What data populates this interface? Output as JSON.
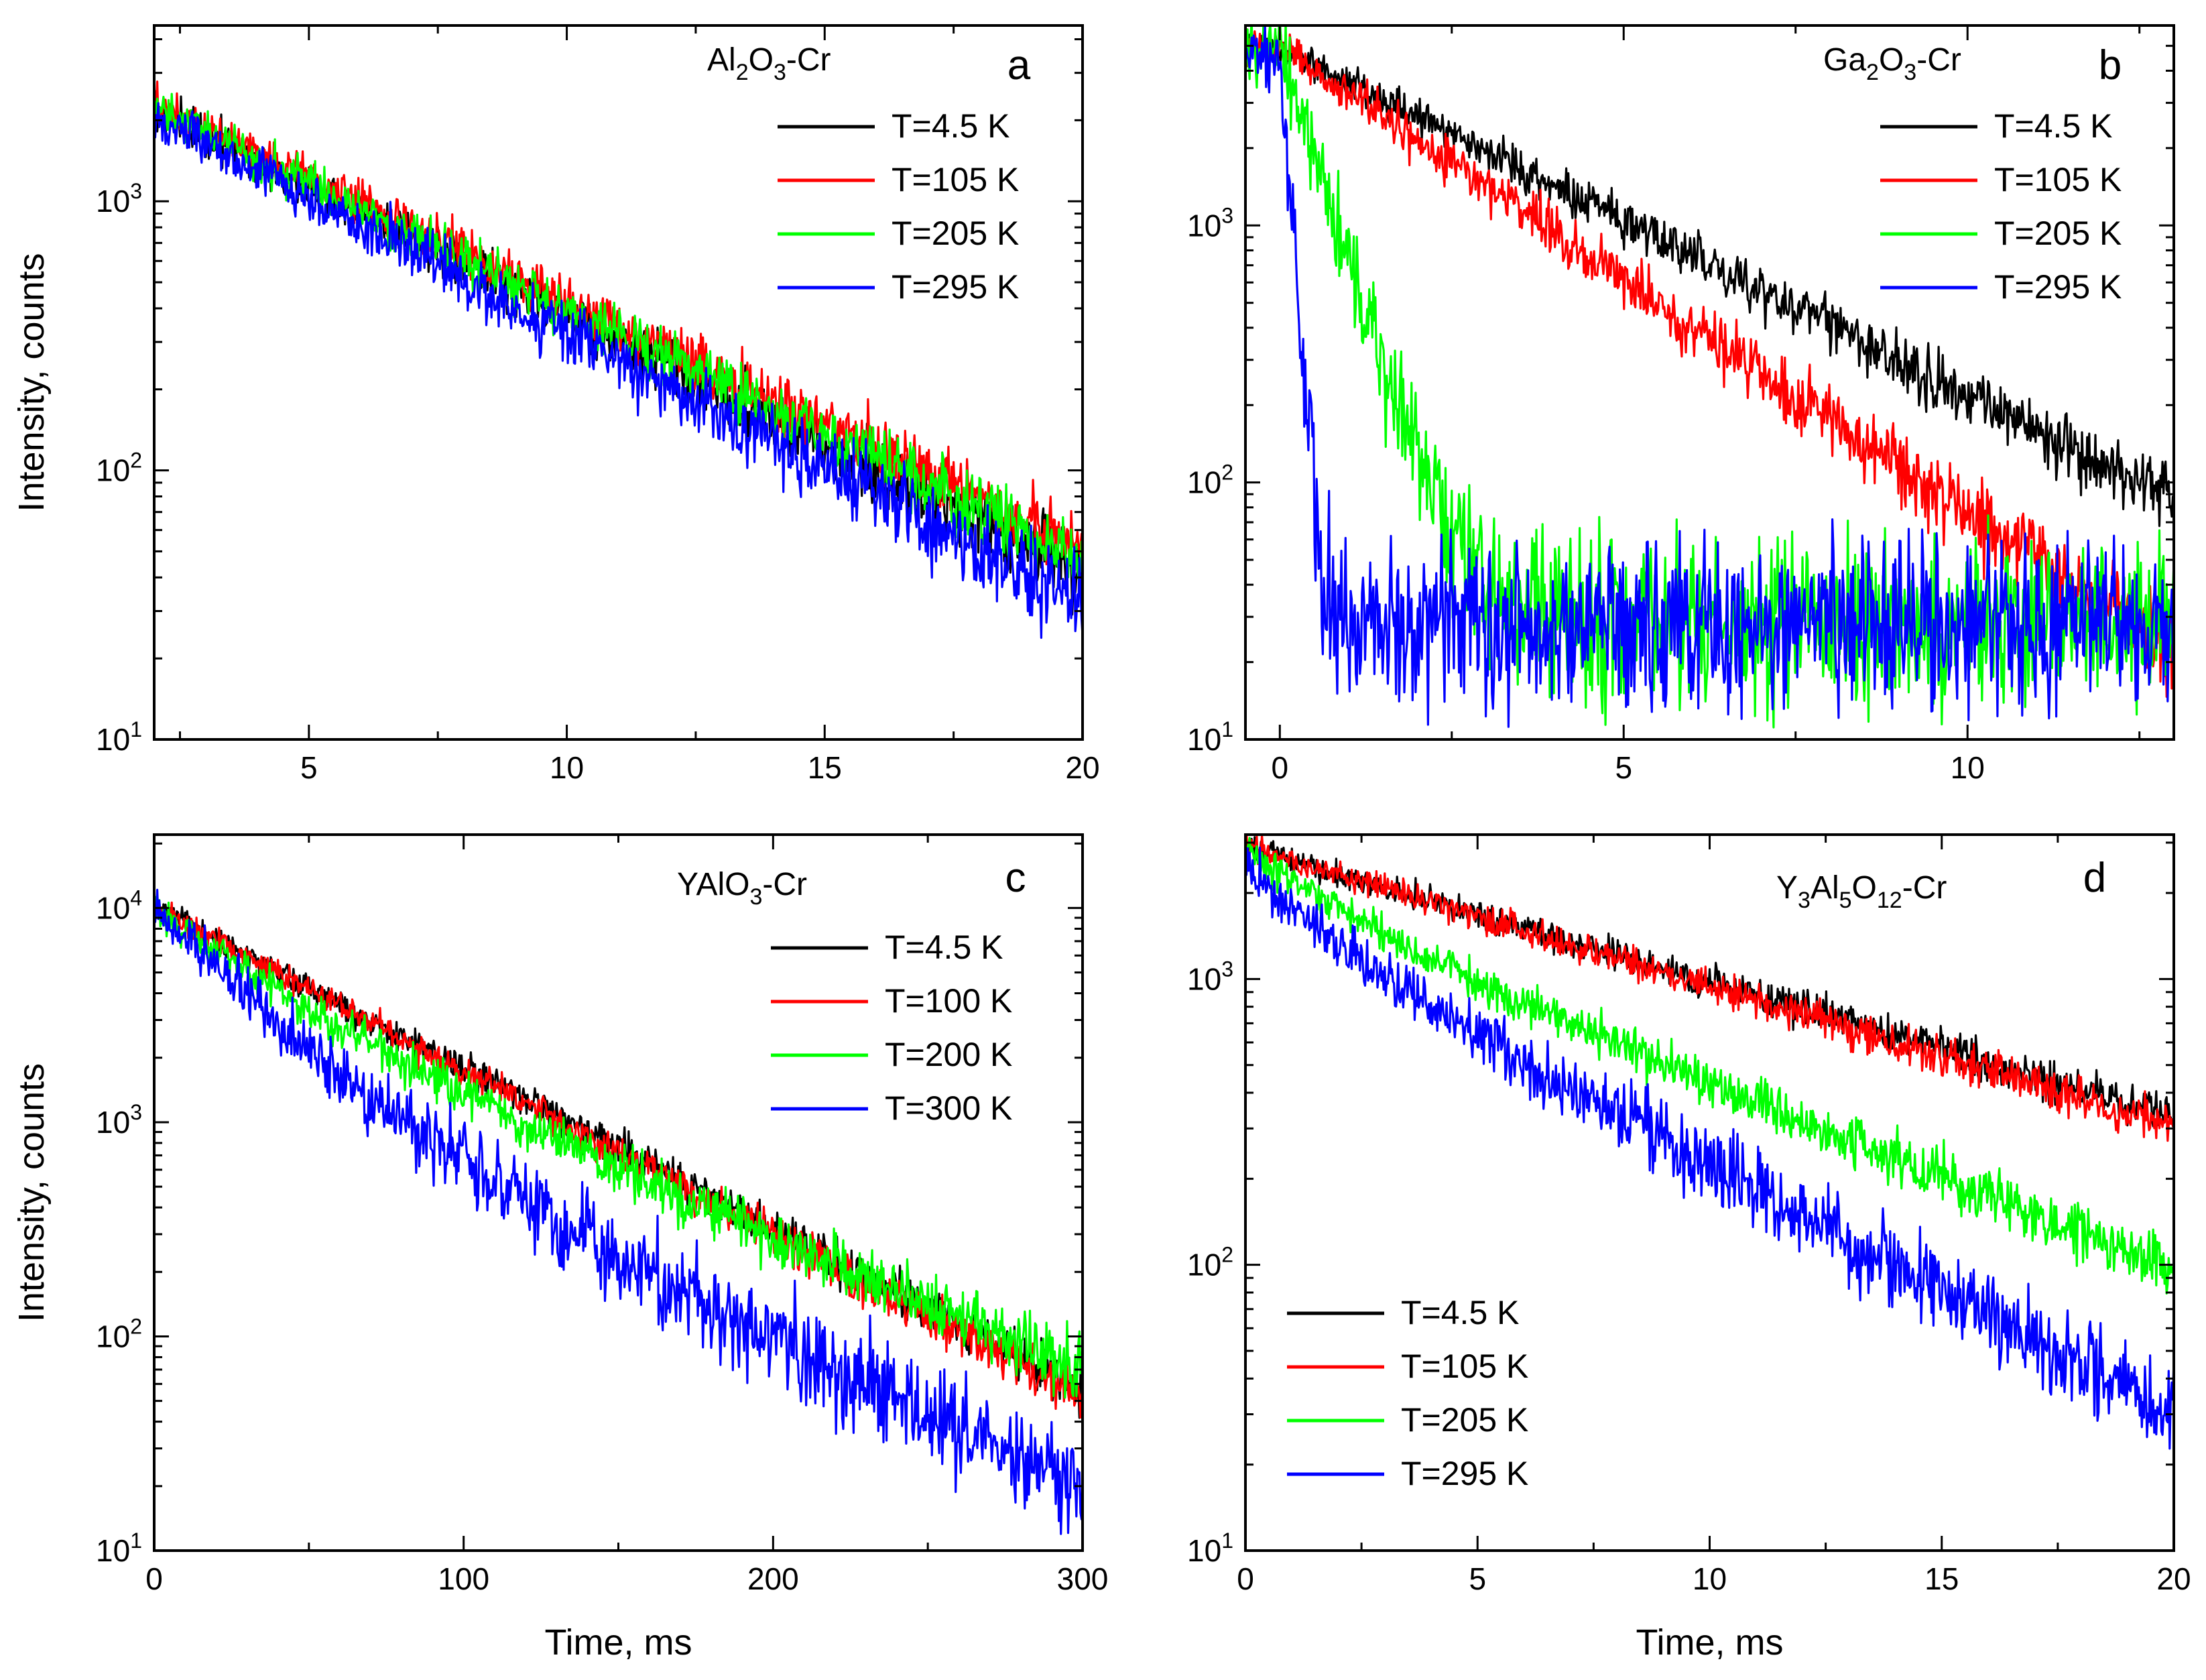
{
  "chart_data": [
    {
      "type": "line",
      "panel": "a",
      "sample_main": "Al",
      "sample_parts": [
        {
          "t": "Al",
          "sub": false
        },
        {
          "t": "2",
          "sub": true
        },
        {
          "t": "O",
          "sub": false
        },
        {
          "t": "3",
          "sub": true
        },
        {
          "t": "-Cr",
          "sub": false
        }
      ],
      "xlabel": "",
      "ylabel": "Intensity, counts",
      "x_scale": "linear",
      "y_scale": "log",
      "xlim": [
        2,
        20
      ],
      "ylim": [
        10,
        4500
      ],
      "xticks": [
        5,
        10,
        15,
        20
      ],
      "xtick_labels": [
        "5",
        "10",
        "15",
        "20"
      ],
      "ymajor_ticks": [
        10,
        100,
        1000
      ],
      "ytick_labels": [
        {
          "base": "10",
          "exp": "1"
        },
        {
          "base": "10",
          "exp": "2"
        },
        {
          "base": "10",
          "exp": "3"
        }
      ],
      "legend_position": "top-right",
      "series": [
        {
          "name": "T=4.5 K",
          "color": "#000000",
          "y0": 3400,
          "decay": [
            {
              "amp": 1.0,
              "tau": 4.55
            }
          ],
          "bg": 0,
          "noise": 0.07
        },
        {
          "name": "T=105 K",
          "color": "#ff0000",
          "y0": 3500,
          "decay": [
            {
              "amp": 1.0,
              "tau": 4.75
            }
          ],
          "bg": 0,
          "noise": 0.07
        },
        {
          "name": "T=205 K",
          "color": "#00ff00",
          "y0": 3400,
          "decay": [
            {
              "amp": 1.0,
              "tau": 4.65
            }
          ],
          "bg": 0,
          "noise": 0.07
        },
        {
          "name": "T=295 K",
          "color": "#0000ff",
          "y0": 3300,
          "decay": [
            {
              "amp": 1.0,
              "tau": 4.3
            }
          ],
          "bg": 0,
          "noise": 0.08
        }
      ]
    },
    {
      "type": "line",
      "panel": "b",
      "sample_parts": [
        {
          "t": "Ga",
          "sub": false
        },
        {
          "t": "2",
          "sub": true
        },
        {
          "t": "O",
          "sub": false
        },
        {
          "t": "3",
          "sub": true
        },
        {
          "t": "-Cr",
          "sub": false
        }
      ],
      "xlabel": "",
      "ylabel": "",
      "x_scale": "linear",
      "y_scale": "log",
      "xlim": [
        -0.5,
        13
      ],
      "ylim": [
        10,
        6000
      ],
      "xticks": [
        0,
        5,
        10
      ],
      "xtick_labels": [
        "0",
        "5",
        "10"
      ],
      "ymajor_ticks": [
        10,
        100,
        1000
      ],
      "ytick_labels": [
        {
          "base": "10",
          "exp": "1"
        },
        {
          "base": "10",
          "exp": "2"
        },
        {
          "base": "10",
          "exp": "3"
        }
      ],
      "legend_position": "top-right",
      "series": [
        {
          "name": "T=4.5 K",
          "color": "#000000",
          "y0": 5000,
          "decay": [
            {
              "amp": 1.0,
              "tau": 3.2
            }
          ],
          "bg": 0,
          "noise": 0.07
        },
        {
          "name": "T=105 K",
          "color": "#ff0000",
          "y0": 5000,
          "decay": [
            {
              "amp": 1.0,
              "tau": 2.4
            }
          ],
          "bg": 0,
          "noise": 0.08
        },
        {
          "name": "T=205 K",
          "color": "#00ff00",
          "y0": 5000,
          "decay": [
            {
              "amp": 1.0,
              "tau": 0.5
            }
          ],
          "bg": 28,
          "noise": 0.15
        },
        {
          "name": "T=295 K",
          "color": "#0000ff",
          "y0": 4500,
          "decay": [
            {
              "amp": 1.0,
              "tau": 0.12
            }
          ],
          "bg": 28,
          "noise": 0.15
        }
      ]
    },
    {
      "type": "line",
      "panel": "c",
      "sample_parts": [
        {
          "t": "YAlO",
          "sub": false
        },
        {
          "t": "3",
          "sub": true
        },
        {
          "t": "-Cr",
          "sub": false
        }
      ],
      "xlabel": "Time, ms",
      "ylabel": "Intensity, counts",
      "x_scale": "linear",
      "y_scale": "log",
      "xlim": [
        0,
        300
      ],
      "ylim": [
        10,
        22000
      ],
      "xticks": [
        0,
        100,
        200,
        300
      ],
      "xtick_labels": [
        "0",
        "100",
        "200",
        "300"
      ],
      "ymajor_ticks": [
        10,
        100,
        1000,
        10000
      ],
      "ytick_labels": [
        {
          "base": "10",
          "exp": "1"
        },
        {
          "base": "10",
          "exp": "2"
        },
        {
          "base": "10",
          "exp": "3"
        },
        {
          "base": "10",
          "exp": "4"
        }
      ],
      "legend_position": "top-right",
      "series": [
        {
          "name": "T=4.5 K",
          "color": "#000000",
          "y0": 10000,
          "decay": [
            {
              "amp": 1.0,
              "tau": 58
            }
          ],
          "bg": 0,
          "noise": 0.06
        },
        {
          "name": "T=100 K",
          "color": "#ff0000",
          "y0": 10000,
          "decay": [
            {
              "amp": 1.0,
              "tau": 57
            }
          ],
          "bg": 0,
          "noise": 0.06
        },
        {
          "name": "T=200 K",
          "color": "#00ff00",
          "y0": 10000,
          "decay": [
            {
              "amp": 0.55,
              "tau": 32
            },
            {
              "amp": 0.45,
              "tau": 72
            }
          ],
          "bg": 0,
          "noise": 0.08
        },
        {
          "name": "T=300 K",
          "color": "#0000ff",
          "y0": 10000,
          "decay": [
            {
              "amp": 0.8,
              "tau": 28
            },
            {
              "amp": 0.2,
              "tau": 65
            }
          ],
          "bg": 0,
          "noise": 0.12
        }
      ]
    },
    {
      "type": "line",
      "panel": "d",
      "sample_parts": [
        {
          "t": "Y",
          "sub": false
        },
        {
          "t": "3",
          "sub": true
        },
        {
          "t": "Al",
          "sub": false
        },
        {
          "t": "5",
          "sub": true
        },
        {
          "t": "O",
          "sub": false
        },
        {
          "t": "12",
          "sub": true
        },
        {
          "t": "-Cr",
          "sub": false
        }
      ],
      "xlabel": "Time, ms",
      "ylabel": "",
      "x_scale": "linear",
      "y_scale": "log",
      "xlim": [
        0,
        20
      ],
      "ylim": [
        10,
        3200
      ],
      "xticks": [
        0,
        5,
        10,
        15,
        20
      ],
      "xtick_labels": [
        "0",
        "5",
        "10",
        "15",
        "20"
      ],
      "ymajor_ticks": [
        10,
        100,
        1000
      ],
      "ytick_labels": [
        {
          "base": "10",
          "exp": "1"
        },
        {
          "base": "10",
          "exp": "2"
        },
        {
          "base": "10",
          "exp": "3"
        }
      ],
      "legend_position": "bottom-left",
      "series": [
        {
          "name": "T=4.5 K",
          "color": "#000000",
          "y0": 2900,
          "decay": [
            {
              "amp": 1.0,
              "tau": 9.2
            }
          ],
          "bg": 0,
          "noise": 0.05
        },
        {
          "name": "T=105 K",
          "color": "#ff0000",
          "y0": 2900,
          "decay": [
            {
              "amp": 1.0,
              "tau": 8.9
            }
          ],
          "bg": 0,
          "noise": 0.05
        },
        {
          "name": "T=205 K",
          "color": "#00ff00",
          "y0": 2800,
          "decay": [
            {
              "amp": 0.3,
              "tau": 2.0
            },
            {
              "amp": 0.7,
              "tau": 6.6
            }
          ],
          "bg": 0,
          "noise": 0.06
        },
        {
          "name": "T=295 K",
          "color": "#0000ff",
          "y0": 2500,
          "decay": [
            {
              "amp": 0.35,
              "tau": 1.6
            },
            {
              "amp": 0.65,
              "tau": 5.0
            }
          ],
          "bg": 0,
          "noise": 0.09
        }
      ]
    }
  ]
}
